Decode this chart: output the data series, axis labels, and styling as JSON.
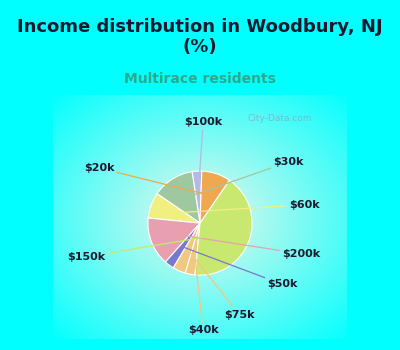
{
  "title": "Income distribution in Woodbury, NJ\n(%)",
  "subtitle": "Multirace residents",
  "title_color": "#1a1a2e",
  "subtitle_color": "#2aaa8a",
  "bg_cyan": "#00ffff",
  "watermark": "City-Data.com",
  "labels": [
    "$100k",
    "$30k",
    "$60k",
    "$200k",
    "$50k",
    "$75k",
    "$40k",
    "$150k",
    "$20k"
  ],
  "sizes": [
    3,
    13,
    8,
    15,
    3,
    4,
    3,
    42,
    9
  ],
  "colors": [
    "#b8b8e8",
    "#a0c8a0",
    "#f0f080",
    "#e8a0b0",
    "#7878cc",
    "#f0c880",
    "#f0c880",
    "#c8e870",
    "#f0a850"
  ],
  "startangle": 88,
  "label_fontsize": 8,
  "title_fontsize": 13,
  "subtitle_fontsize": 10
}
